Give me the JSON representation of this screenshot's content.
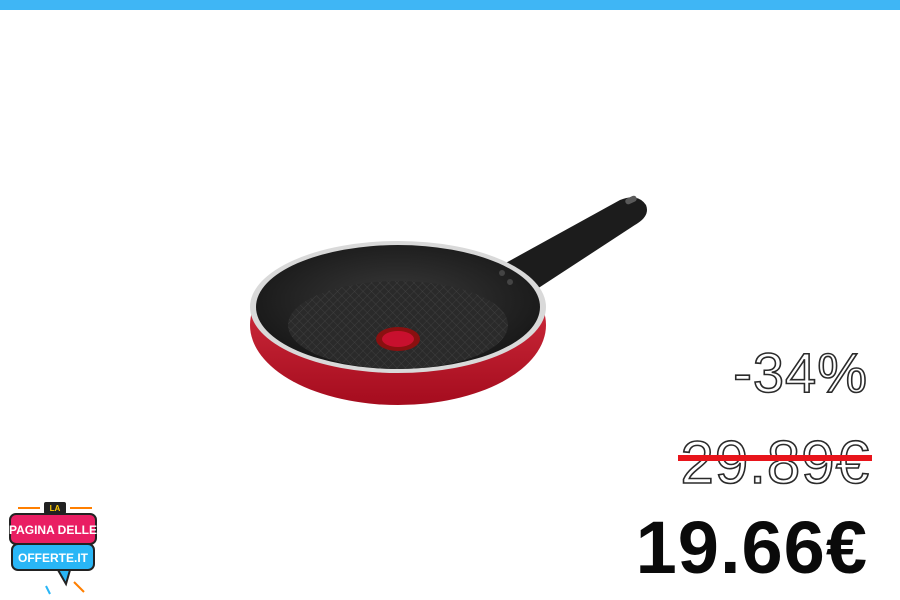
{
  "offer": {
    "discount": "-34%",
    "old_price": "29.89€",
    "new_price": "19.66€"
  },
  "logo": {
    "text_top": "LA",
    "text_middle": "PAGINA DELLE",
    "text_bottom": "OFFERTE.IT"
  },
  "colors": {
    "top_bar": "#3fb6f5",
    "strike": "#e8141b",
    "pan_red": "#c8102e"
  },
  "icons": [
    "frying-pan-icon",
    "logo-icon"
  ]
}
